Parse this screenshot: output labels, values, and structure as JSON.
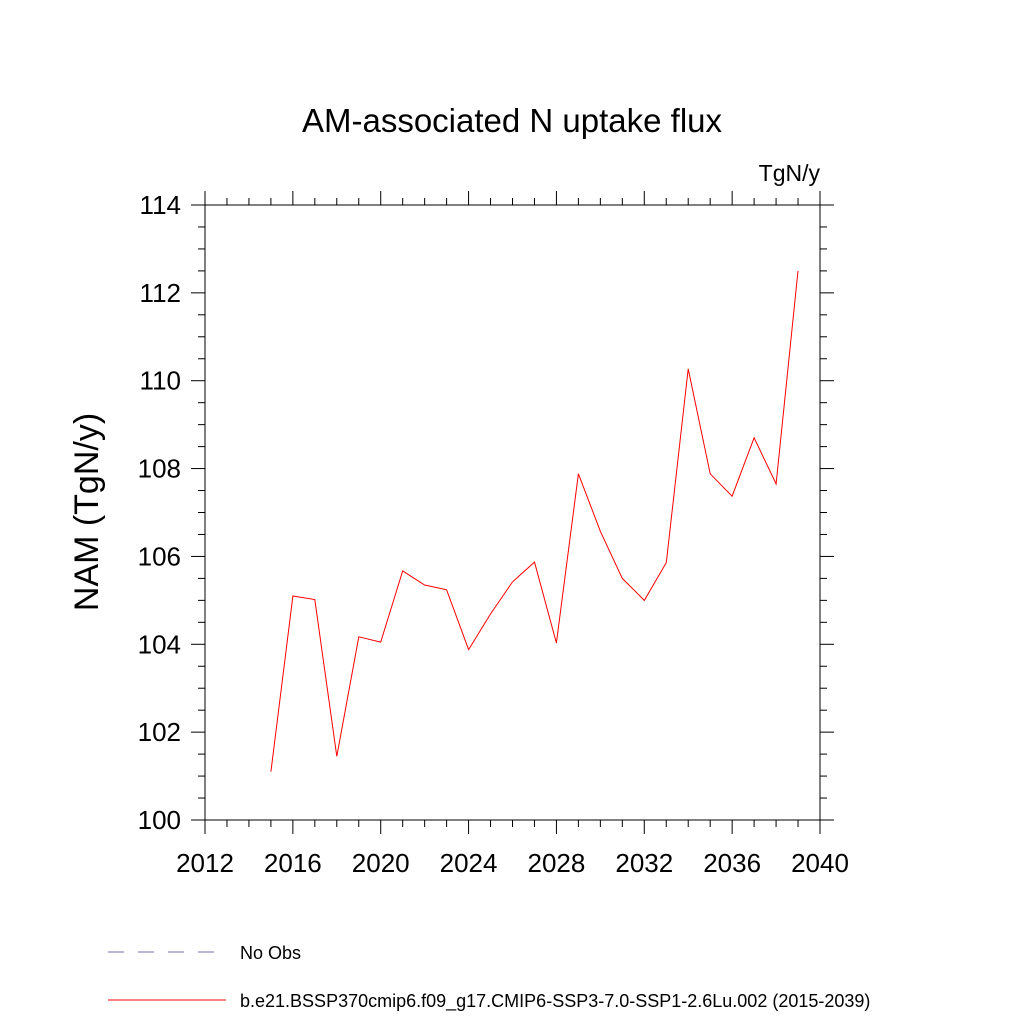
{
  "chart_data": {
    "type": "line",
    "title": "AM-associated N uptake flux",
    "units": "TgN/y",
    "xlabel": "",
    "ylabel": "NAM  (TgN/y)",
    "xlim": [
      2012,
      2040
    ],
    "ylim": [
      100,
      114
    ],
    "xticks": [
      2012,
      2016,
      2020,
      2024,
      2028,
      2032,
      2036,
      2040
    ],
    "yticks": [
      100,
      102,
      104,
      106,
      108,
      110,
      112,
      114
    ],
    "grid": false,
    "legend_placement": "bottom",
    "series": [
      {
        "name": "b.e21.BSSP370cmip6.f09_g17.CMIP6-SSP3-7.0-SSP1-2.6Lu.002 (2015-2039)",
        "color": "#ff0000",
        "style": "solid",
        "x": [
          2015,
          2016,
          2017,
          2018,
          2019,
          2020,
          2021,
          2022,
          2023,
          2024,
          2025,
          2026,
          2027,
          2028,
          2029,
          2030,
          2031,
          2032,
          2033,
          2034,
          2035,
          2036,
          2037,
          2038,
          2039
        ],
        "y": [
          101.1,
          105.1,
          105.02,
          101.45,
          104.17,
          104.05,
          105.67,
          105.35,
          105.24,
          103.88,
          104.69,
          105.42,
          105.87,
          104.03,
          107.88,
          106.57,
          105.5,
          105.0,
          105.86,
          110.27,
          107.88,
          107.37,
          108.7,
          107.65,
          112.5
        ]
      }
    ],
    "legend": [
      {
        "label": "No Obs",
        "color": "#7b68b0",
        "style": "dashed"
      },
      {
        "label": "b.e21.BSSP370cmip6.f09_g17.CMIP6-SSP3-7.0-SSP1-2.6Lu.002 (2015-2039)",
        "color": "#ff0000",
        "style": "solid"
      }
    ]
  }
}
